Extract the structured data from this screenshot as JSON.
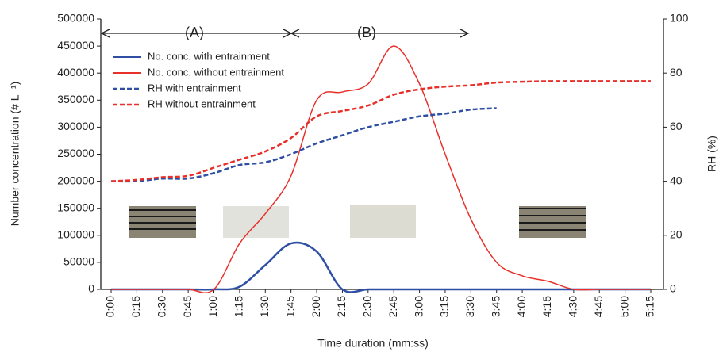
{
  "chart_data": {
    "type": "line",
    "x_label": "Time duration (mm:ss)",
    "y_label": "Number concentration (# L⁻¹)",
    "y2_label": "RH (%)",
    "annotations": [
      "(A)",
      "(B)"
    ],
    "categories": [
      "0:00",
      "0:15",
      "0:30",
      "0:45",
      "1:00",
      "1:15",
      "1:30",
      "1:45",
      "2:00",
      "2:15",
      "2:30",
      "2:45",
      "3:00",
      "3:15",
      "3:30",
      "3:45",
      "4:00",
      "4:15",
      "4:30",
      "4:45",
      "5:00",
      "5:15"
    ],
    "ylim": [
      0,
      500000
    ],
    "yticks": [
      0,
      50000,
      100000,
      150000,
      200000,
      250000,
      300000,
      350000,
      400000,
      450000,
      500000
    ],
    "y2lim": [
      0,
      100
    ],
    "y2ticks": [
      0,
      20,
      40,
      60,
      80,
      100
    ],
    "legend": "upper left",
    "series": [
      {
        "name": "No. conc. with entrainment",
        "color": "#2e4fa3",
        "style": "solid",
        "values": [
          0,
          0,
          0,
          0,
          0,
          5000,
          45000,
          85000,
          70000,
          0,
          0,
          0,
          0,
          0,
          0,
          0,
          0,
          0,
          0,
          0,
          0,
          0
        ]
      },
      {
        "name": "No. conc. without entrainment",
        "color": "#e8302a",
        "style": "solid",
        "values": [
          0,
          0,
          0,
          0,
          0,
          85000,
          140000,
          210000,
          350000,
          365000,
          380000,
          450000,
          380000,
          250000,
          130000,
          50000,
          25000,
          15000,
          0,
          0,
          0,
          0
        ]
      },
      {
        "name": "RH with entrainment",
        "color": "#2e4fa3",
        "style": "dashed",
        "axis": "y2",
        "values": [
          40,
          40,
          41,
          41,
          43,
          46,
          47,
          50,
          54,
          57,
          60,
          62,
          64,
          65,
          66.5,
          67,
          null,
          null,
          null,
          null,
          null,
          null
        ]
      },
      {
        "name": "RH without entrainment",
        "color": "#e8302a",
        "style": "dashed",
        "axis": "y2",
        "values": [
          40,
          40.5,
          41.5,
          42,
          45,
          48,
          51,
          56,
          64,
          66,
          68,
          72,
          74,
          75,
          75.5,
          76.5,
          76.8,
          77,
          77,
          77,
          77,
          77
        ]
      }
    ]
  }
}
